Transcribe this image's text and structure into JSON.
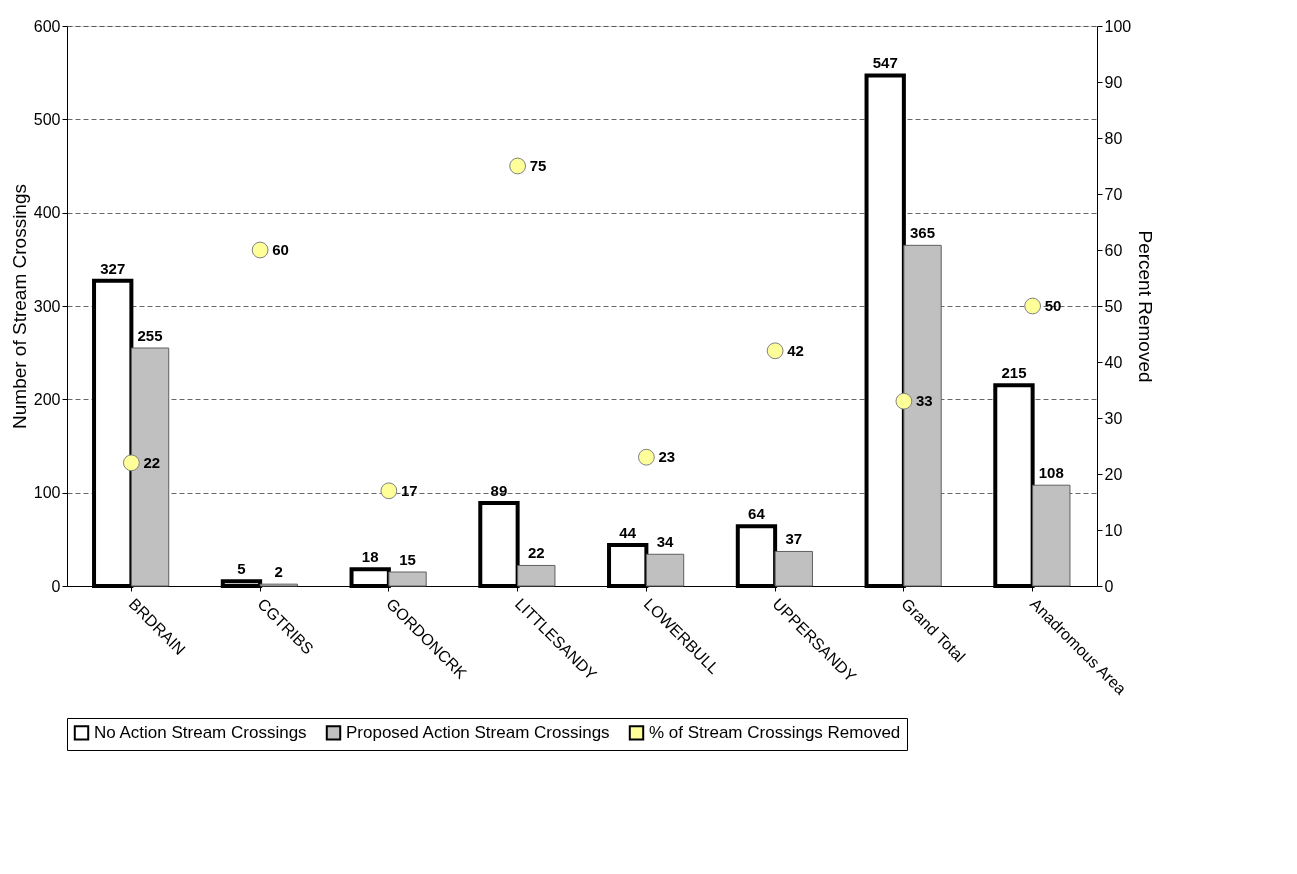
{
  "chart_data": {
    "type": "bar",
    "categories": [
      "BRDRAIN",
      "CGTRIBS",
      "GORDONCRK",
      "LITTLESANDY",
      "LOWERBULL",
      "UPPERSANDY",
      "Grand Total",
      "Anadromous Area"
    ],
    "series": [
      {
        "name": "No Action Stream Crossings",
        "color": "#ffffff",
        "values": [
          327,
          5,
          18,
          89,
          44,
          64,
          547,
          215
        ]
      },
      {
        "name": "Proposed Action Stream Crossings",
        "color": "#c0c0c0",
        "values": [
          255,
          2,
          15,
          22,
          34,
          37,
          365,
          108
        ]
      },
      {
        "name": "% of Stream Crossings Removed",
        "type": "scatter",
        "axis": "y2",
        "color": "#ffff99",
        "marker": "circle",
        "values": [
          22,
          60,
          17,
          75,
          23,
          42,
          33,
          50
        ]
      }
    ],
    "ylabel": "Number of Stream Crossings",
    "y2label": "Percent Removed",
    "ylim": [
      0,
      600
    ],
    "yticks": [
      0,
      100,
      200,
      300,
      400,
      500,
      600
    ],
    "y2lim": [
      0,
      100
    ],
    "y2ticks": [
      0,
      10,
      20,
      30,
      40,
      50,
      60,
      70,
      80,
      90,
      100
    ],
    "grid": "y",
    "legend": "bottom",
    "data_labels": true
  }
}
